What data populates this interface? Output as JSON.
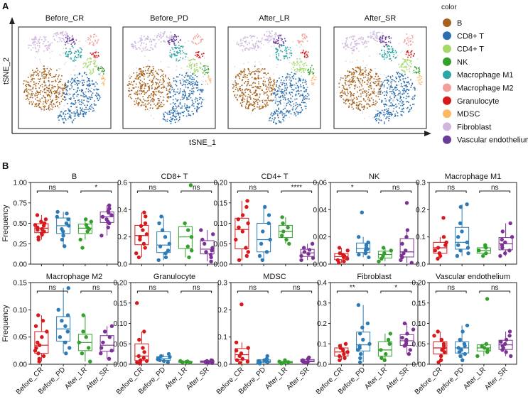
{
  "panel_a_label": "A",
  "panel_b_label": "B",
  "colors": {
    "Before_CR": "#d7191c",
    "Before_PD": "#2c7bb6",
    "After_LR": "#33a02c",
    "After_SR": "#7b3294"
  },
  "chart_data": [
    {
      "type": "scatter",
      "subtype": "tSNE",
      "panel": "A",
      "xlabel": "tSNE_1",
      "ylabel": "tSNE_2",
      "facets": [
        "Before_CR",
        "Before_PD",
        "After_LR",
        "After_SR"
      ],
      "legend": {
        "title": "color",
        "placement": "right",
        "items": [
          {
            "label": "B",
            "color": "#a6611a"
          },
          {
            "label": "CD8+ T",
            "color": "#2c6fae"
          },
          {
            "label": "CD4+ T",
            "color": "#a6d96a"
          },
          {
            "label": "NK",
            "color": "#33a02c"
          },
          {
            "label": "Macrophage M1",
            "color": "#2ca6a4"
          },
          {
            "label": "Macrophage M2",
            "color": "#f4a09a"
          },
          {
            "label": "Granulocyte",
            "color": "#d7191c"
          },
          {
            "label": "MDSC",
            "color": "#fdb863"
          },
          {
            "label": "Fibroblast",
            "color": "#cfb6dd"
          },
          {
            "label": "Vascular endothelium",
            "color": "#6a3d9a"
          }
        ]
      }
    },
    {
      "type": "box",
      "panel": "B",
      "ylabel": "Frequency",
      "categories": [
        "Before_CR",
        "Before_PD",
        "After_LR",
        "After_SR"
      ],
      "subplots": [
        {
          "title": "B",
          "ylim": [
            0,
            1.0
          ],
          "yticks": [
            "0.00",
            "0.25",
            "0.50",
            "0.75",
            "1.00"
          ],
          "ytickv": [
            0,
            0.25,
            0.5,
            0.75,
            1.0
          ],
          "series": [
            [
              0.3,
              0.33,
              0.36,
              0.38,
              0.4,
              0.42,
              0.43,
              0.45,
              0.47,
              0.48,
              0.5,
              0.52,
              0.55,
              0.6
            ],
            [
              0.22,
              0.3,
              0.35,
              0.4,
              0.43,
              0.47,
              0.5,
              0.55,
              0.58,
              0.62,
              0.64
            ],
            [
              0.2,
              0.3,
              0.4,
              0.43,
              0.45,
              0.48,
              0.52,
              0.55
            ],
            [
              0.35,
              0.45,
              0.5,
              0.52,
              0.55,
              0.58,
              0.6,
              0.63,
              0.65,
              0.68,
              0.72
            ]
          ],
          "sig": [
            {
              "label": "ns",
              "pair": [
                0,
                1
              ]
            },
            {
              "label": "*",
              "pair": [
                2,
                3
              ]
            }
          ]
        },
        {
          "title": "CD8+ T",
          "ylim": [
            0,
            0.6
          ],
          "yticks": [
            "0.0",
            "0.2",
            "0.4",
            "0.6"
          ],
          "ytickv": [
            0,
            0.2,
            0.4,
            0.6
          ],
          "series": [
            [
              0.05,
              0.08,
              0.12,
              0.15,
              0.18,
              0.2,
              0.22,
              0.25,
              0.28,
              0.3,
              0.35,
              0.38
            ],
            [
              0.03,
              0.05,
              0.08,
              0.1,
              0.13,
              0.15,
              0.2,
              0.25,
              0.3,
              0.35
            ],
            [
              0.05,
              0.1,
              0.13,
              0.2,
              0.25,
              0.3,
              0.58
            ],
            [
              0.02,
              0.05,
              0.07,
              0.09,
              0.1,
              0.12,
              0.15,
              0.18,
              0.22,
              0.25
            ]
          ],
          "sig": [
            {
              "label": "ns",
              "pair": [
                0,
                1
              ]
            },
            {
              "label": "ns",
              "pair": [
                2,
                3
              ]
            }
          ]
        },
        {
          "title": "CD4+ T",
          "ylim": [
            0,
            0.2
          ],
          "yticks": [
            "0.00",
            "0.05",
            "0.10",
            "0.15",
            "0.20"
          ],
          "ytickv": [
            0,
            0.05,
            0.1,
            0.15,
            0.2
          ],
          "series": [
            [
              0.01,
              0.02,
              0.03,
              0.04,
              0.06,
              0.08,
              0.09,
              0.1,
              0.11,
              0.12,
              0.14,
              0.155
            ],
            [
              0.01,
              0.02,
              0.03,
              0.05,
              0.06,
              0.08,
              0.1,
              0.12,
              0.14
            ],
            [
              0.05,
              0.06,
              0.07,
              0.08,
              0.09,
              0.1,
              0.115
            ],
            [
              0.01,
              0.015,
              0.02,
              0.025,
              0.03,
              0.035,
              0.04,
              0.05
            ]
          ],
          "sig": [
            {
              "label": "ns",
              "pair": [
                0,
                1
              ]
            },
            {
              "label": "****",
              "pair": [
                2,
                3
              ]
            }
          ]
        },
        {
          "title": "NK",
          "ylim": [
            0,
            0.06
          ],
          "yticks": [
            "0.00",
            "0.02",
            "0.04",
            "0.06"
          ],
          "ytickv": [
            0,
            0.02,
            0.04,
            0.06
          ],
          "series": [
            [
              0.001,
              0.002,
              0.003,
              0.004,
              0.005,
              0.006,
              0.007,
              0.008,
              0.01,
              0.012
            ],
            [
              0.005,
              0.007,
              0.008,
              0.01,
              0.011,
              0.012,
              0.014,
              0.016,
              0.02,
              0.038
            ],
            [
              0.002,
              0.004,
              0.006,
              0.008,
              0.01,
              0.012
            ],
            [
              0.001,
              0.003,
              0.005,
              0.006,
              0.008,
              0.01,
              0.015,
              0.02,
              0.025,
              0.045
            ]
          ],
          "sig": [
            {
              "label": "*",
              "pair": [
                0,
                1
              ]
            },
            {
              "label": "ns",
              "pair": [
                2,
                3
              ]
            }
          ]
        },
        {
          "title": "Macrophage M1",
          "ylim": [
            0,
            0.3
          ],
          "yticks": [
            "0.0",
            "0.1",
            "0.2",
            "0.3"
          ],
          "ytickv": [
            0,
            0.1,
            0.2,
            0.3
          ],
          "series": [
            [
              0.02,
              0.03,
              0.04,
              0.05,
              0.06,
              0.07,
              0.08,
              0.1,
              0.17
            ],
            [
              0.03,
              0.04,
              0.05,
              0.06,
              0.07,
              0.08,
              0.1,
              0.12,
              0.15,
              0.21,
              0.22
            ],
            [
              0.03,
              0.04,
              0.05,
              0.06,
              0.07
            ],
            [
              0.03,
              0.04,
              0.05,
              0.06,
              0.07,
              0.08,
              0.09,
              0.1,
              0.12,
              0.15
            ]
          ],
          "sig": [
            {
              "label": "ns",
              "pair": [
                0,
                1
              ]
            },
            {
              "label": "ns",
              "pair": [
                2,
                3
              ]
            }
          ]
        },
        {
          "title": "Macrophage M2",
          "ylim": [
            0,
            0.15
          ],
          "yticks": [
            "0.00",
            "0.05",
            "0.10",
            "0.15"
          ],
          "ytickv": [
            0,
            0.05,
            0.1,
            0.15
          ],
          "series": [
            [
              0.005,
              0.01,
              0.015,
              0.02,
              0.025,
              0.03,
              0.035,
              0.04,
              0.05,
              0.06,
              0.07,
              0.08,
              0.09
            ],
            [
              0.02,
              0.03,
              0.04,
              0.05,
              0.06,
              0.07,
              0.08,
              0.09,
              0.1,
              0.14
            ],
            [
              0.005,
              0.02,
              0.03,
              0.04,
              0.05,
              0.06,
              0.09
            ],
            [
              0.01,
              0.02,
              0.025,
              0.03,
              0.04,
              0.05,
              0.06,
              0.07
            ]
          ],
          "sig": [
            {
              "label": "ns",
              "pair": [
                0,
                1
              ]
            },
            {
              "label": "ns",
              "pair": [
                2,
                3
              ]
            }
          ]
        },
        {
          "title": "Granulocyte",
          "ylim": [
            0,
            0.2
          ],
          "yticks": [
            "0.00",
            "0.05",
            "0.10",
            "0.15",
            "0.20"
          ],
          "ytickv": [
            0,
            0.05,
            0.1,
            0.15,
            0.2
          ],
          "series": [
            [
              0.002,
              0.005,
              0.008,
              0.01,
              0.015,
              0.02,
              0.03,
              0.04,
              0.06,
              0.08,
              0.15
            ],
            [
              0.005,
              0.008,
              0.01,
              0.012,
              0.015,
              0.018,
              0.02,
              0.025
            ],
            [
              0.004,
              0.005,
              0.006,
              0.007,
              0.008
            ],
            [
              0.003,
              0.004,
              0.005,
              0.006,
              0.007,
              0.008,
              0.009,
              0.01
            ]
          ],
          "sig": [
            {
              "label": "ns",
              "pair": [
                0,
                1
              ]
            },
            {
              "label": "ns",
              "pair": [
                2,
                3
              ]
            }
          ]
        },
        {
          "title": "MDSC",
          "ylim": [
            0,
            0.3
          ],
          "yticks": [
            "0.0",
            "0.1",
            "0.2",
            "0.3"
          ],
          "ytickv": [
            0,
            0.1,
            0.2,
            0.3
          ],
          "series": [
            [
              0.005,
              0.01,
              0.015,
              0.02,
              0.03,
              0.04,
              0.05,
              0.06,
              0.08,
              0.22
            ],
            [
              0.003,
              0.005,
              0.008,
              0.01,
              0.012,
              0.015,
              0.02,
              0.03
            ],
            [
              0.003,
              0.005,
              0.008,
              0.01,
              0.015
            ],
            [
              0.005,
              0.008,
              0.01,
              0.012,
              0.015,
              0.02,
              0.025
            ]
          ],
          "sig": [
            {
              "label": "ns",
              "pair": [
                0,
                1
              ]
            },
            {
              "label": "ns",
              "pair": [
                2,
                3
              ]
            }
          ]
        },
        {
          "title": "Fibroblast",
          "ylim": [
            0,
            0.4
          ],
          "yticks": [
            "0.0",
            "0.1",
            "0.2",
            "0.3",
            "0.4"
          ],
          "ytickv": [
            0,
            0.1,
            0.2,
            0.3,
            0.4
          ],
          "series": [
            [
              0.02,
              0.03,
              0.04,
              0.05,
              0.06,
              0.07,
              0.08,
              0.09,
              0.1
            ],
            [
              0.01,
              0.03,
              0.05,
              0.07,
              0.08,
              0.09,
              0.1,
              0.12,
              0.15,
              0.18,
              0.2,
              0.29
            ],
            [
              0.02,
              0.03,
              0.05,
              0.07,
              0.1,
              0.12,
              0.15
            ],
            [
              0.05,
              0.07,
              0.09,
              0.1,
              0.11,
              0.12,
              0.13,
              0.15,
              0.17,
              0.2
            ]
          ],
          "sig": [
            {
              "label": "**",
              "pair": [
                0,
                1
              ]
            },
            {
              "label": "*",
              "pair": [
                2,
                3
              ]
            }
          ]
        },
        {
          "title": "Vascular endothelium",
          "ylim": [
            0,
            0.2
          ],
          "yticks": [
            "0.00",
            "0.05",
            "0.10",
            "0.15",
            "0.20"
          ],
          "ytickv": [
            0,
            0.05,
            0.1,
            0.15,
            0.2
          ],
          "series": [
            [
              0.005,
              0.01,
              0.02,
              0.03,
              0.035,
              0.04,
              0.045,
              0.05,
              0.06,
              0.07,
              0.08
            ],
            [
              0.01,
              0.02,
              0.025,
              0.03,
              0.035,
              0.04,
              0.045,
              0.05,
              0.06,
              0.08,
              0.095
            ],
            [
              0.02,
              0.03,
              0.035,
              0.04,
              0.045,
              0.05,
              0.16
            ],
            [
              0.02,
              0.03,
              0.035,
              0.04,
              0.045,
              0.05,
              0.055,
              0.06,
              0.07,
              0.08
            ]
          ],
          "sig": [
            {
              "label": "ns",
              "pair": [
                0,
                1
              ]
            },
            {
              "label": "ns",
              "pair": [
                2,
                3
              ]
            }
          ]
        }
      ]
    }
  ]
}
